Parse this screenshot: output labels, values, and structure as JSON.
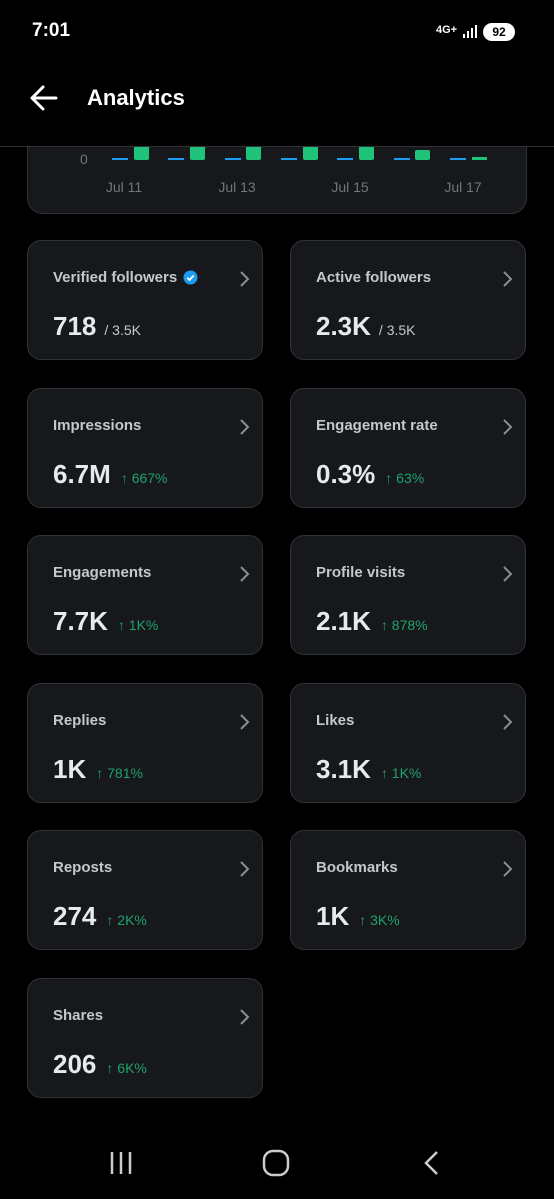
{
  "status_bar": {
    "time": "7:01",
    "network": "4G+",
    "battery": "92"
  },
  "header": {
    "title": "Analytics"
  },
  "chart": {
    "y_label": "0",
    "x_labels": [
      "Jul 11",
      "Jul 13",
      "Jul 15",
      "Jul 17"
    ]
  },
  "cards": [
    {
      "label": "Verified followers",
      "value": "718",
      "detail": "/ 3.5K",
      "verified": true
    },
    {
      "label": "Active followers",
      "value": "2.3K",
      "detail": "/ 3.5K"
    },
    {
      "label": "Impressions",
      "value": "6.7M",
      "change": "↑ 667%"
    },
    {
      "label": "Engagement rate",
      "value": "0.3%",
      "change": "↑ 63%"
    },
    {
      "label": "Engagements",
      "value": "7.7K",
      "change": "↑ 1K%"
    },
    {
      "label": "Profile visits",
      "value": "2.1K",
      "change": "↑ 878%"
    },
    {
      "label": "Replies",
      "value": "1K",
      "change": "↑ 781%"
    },
    {
      "label": "Likes",
      "value": "3.1K",
      "change": "↑ 1K%"
    },
    {
      "label": "Reposts",
      "value": "274",
      "change": "↑ 2K%"
    },
    {
      "label": "Bookmarks",
      "value": "1K",
      "change": "↑ 3K%"
    },
    {
      "label": "Shares",
      "value": "206",
      "change": "↑ 6K%"
    }
  ]
}
